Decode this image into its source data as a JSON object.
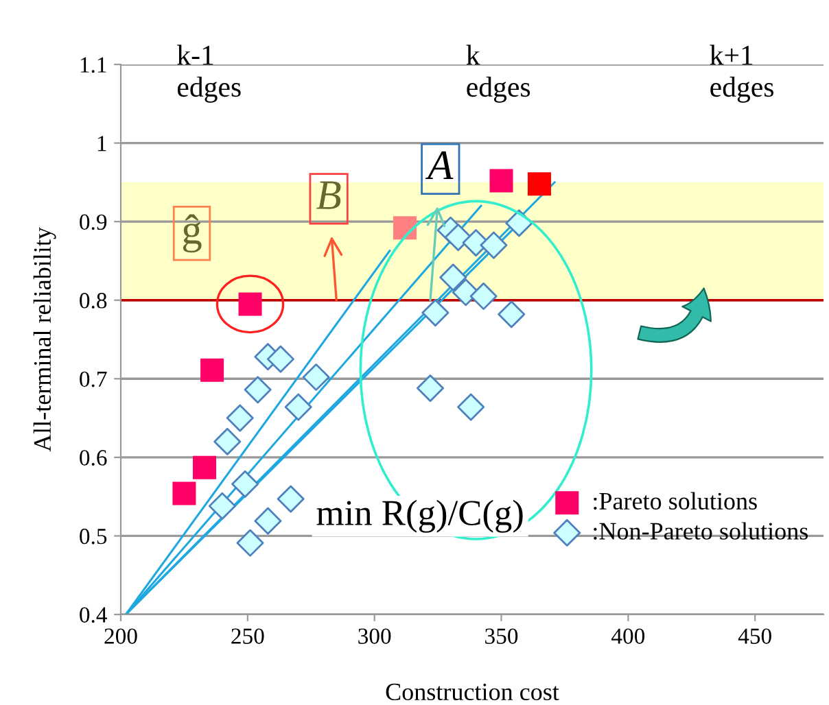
{
  "chart_data": {
    "type": "scatter",
    "xlabel": "Construction cost",
    "ylabel": "All-terminal reliability",
    "xlim": [
      200,
      477
    ],
    "ylim": [
      0.4,
      1.1
    ],
    "xticks": [
      200,
      250,
      300,
      350,
      400,
      450
    ],
    "yticks": [
      0.4,
      0.5,
      0.6,
      0.7,
      0.8,
      0.9,
      1,
      1.1
    ],
    "grid": "y",
    "legend": "lower right",
    "series": [
      {
        "name": ":Pareto solutions",
        "marker": "square",
        "color": "#ff0066",
        "x": [
          225,
          233,
          236,
          251,
          312,
          350,
          365
        ],
        "values": [
          0.554,
          0.587,
          0.711,
          0.795,
          0.892,
          0.952,
          0.948
        ],
        "colors": [
          "#ff0066",
          "#ff0066",
          "#ff0066",
          "#ff0066",
          "#ff8080",
          "#ff0066",
          "#ff0000"
        ]
      },
      {
        "name": ":Non-Pareto solutions",
        "marker": "diamond",
        "color": "#ccffff",
        "x": [
          258,
          263,
          277,
          254,
          270,
          247,
          242,
          249,
          240,
          267,
          258,
          251,
          357,
          330,
          333,
          340,
          347,
          331,
          336,
          343,
          324,
          354,
          322,
          338
        ],
        "values": [
          0.728,
          0.725,
          0.702,
          0.686,
          0.664,
          0.65,
          0.62,
          0.566,
          0.538,
          0.547,
          0.519,
          0.491,
          0.898,
          0.889,
          0.88,
          0.873,
          0.87,
          0.829,
          0.81,
          0.805,
          0.784,
          0.782,
          0.688,
          0.664
        ]
      },
      {
        "type": "line",
        "color": "#1fa8e0",
        "x": [
          202,
          306
        ],
        "values": [
          0.4,
          0.863
        ]
      },
      {
        "type": "line",
        "color": "#1fa8e0",
        "x": [
          202,
          342
        ],
        "values": [
          0.4,
          0.92
        ]
      },
      {
        "type": "line",
        "color": "#1fa8e0",
        "x": [
          202,
          371
        ],
        "values": [
          0.4,
          0.95
        ]
      },
      {
        "type": "line",
        "color": "#1fa8e0",
        "x": [
          202,
          357
        ],
        "values": [
          0.4,
          0.898
        ]
      }
    ],
    "bands": [
      {
        "axis": "y",
        "from": 0.8,
        "to": 0.95,
        "color": "#ffffc8"
      }
    ],
    "ref_lines": [
      {
        "axis": "y",
        "value": 0.8,
        "color": "#c00000",
        "line_style": "solid"
      }
    ],
    "annotations": [
      "k-1\nedges",
      "k\nedges",
      "k+1\nedges",
      {
        "text": "A",
        "x": 322,
        "y": 0.8
      },
      {
        "text": "B",
        "x": 285,
        "y": 0.8
      },
      "ĝ",
      "min R(g)/C(g)"
    ]
  }
}
